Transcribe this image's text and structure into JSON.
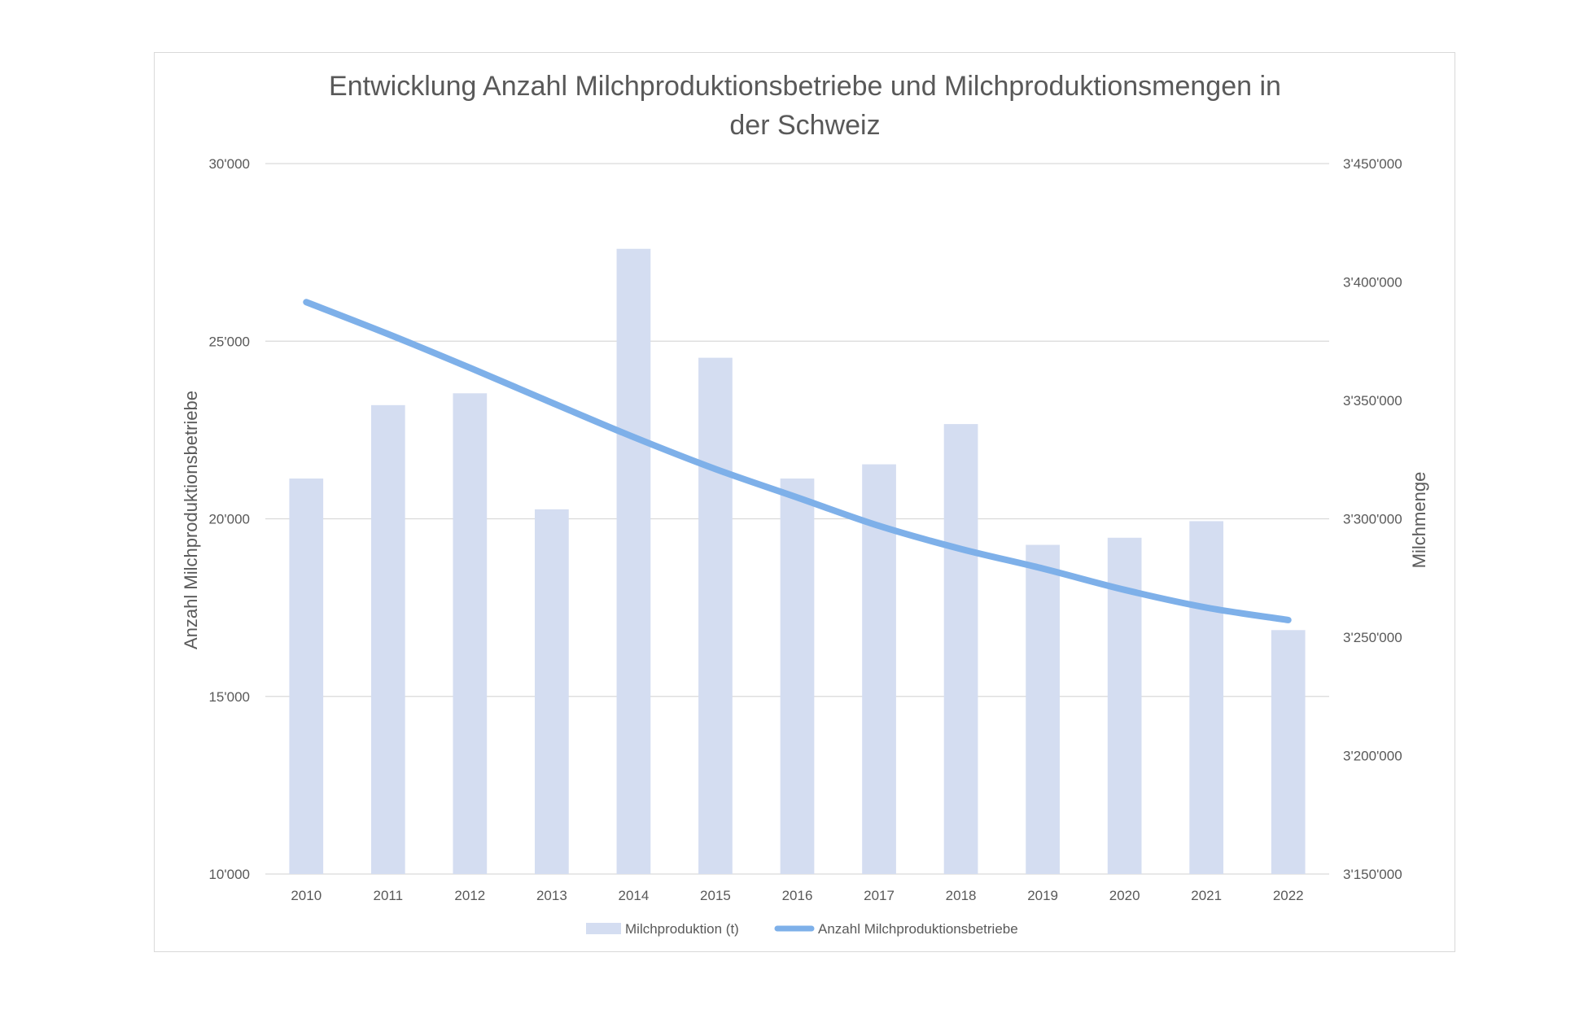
{
  "chart_data": {
    "type": "bar",
    "title_lines": [
      "Entwicklung Anzahl Milchproduktionsbetriebe und Milchproduktionsmengen in",
      "der Schweiz"
    ],
    "categories": [
      "2010",
      "2011",
      "2012",
      "2013",
      "2014",
      "2015",
      "2016",
      "2017",
      "2018",
      "2019",
      "2020",
      "2021",
      "2022"
    ],
    "ylabel": "Anzahl Milchproduktionsbetriebe",
    "ylabel_right": "Milchmenge",
    "ylim": [
      10000,
      30000
    ],
    "ylim_right": [
      3150000,
      3450000
    ],
    "y_ticks": [
      "10'000",
      "15'000",
      "20'000",
      "25'000",
      "30'000"
    ],
    "y_ticks_right": [
      "3'150'000",
      "3'200'000",
      "3'250'000",
      "3'300'000",
      "3'350'000",
      "3'400'000",
      "3'450'000"
    ],
    "grid": true,
    "legend_position": "bottom",
    "series": [
      {
        "name": "Milchproduktion (t)",
        "type": "bar",
        "axis": "right",
        "color": "#d4ddf1",
        "values": [
          3317000,
          3348000,
          3353000,
          3304000,
          3414000,
          3368000,
          3317000,
          3323000,
          3340000,
          3289000,
          3292000,
          3299000,
          3253000
        ]
      },
      {
        "name": "Anzahl Milchproduktionsbetriebe",
        "type": "line",
        "axis": "left",
        "color": "#7eb0e9",
        "values": [
          26100,
          25200,
          24250,
          23270,
          22300,
          21400,
          20600,
          19800,
          19150,
          18600,
          18000,
          17500,
          17150
        ]
      }
    ]
  }
}
